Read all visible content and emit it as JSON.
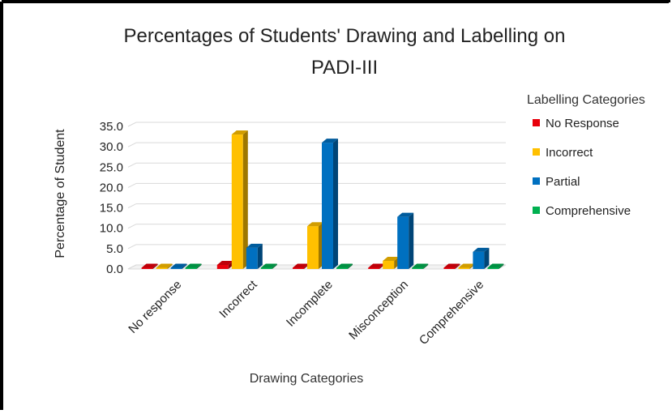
{
  "chart_data": {
    "type": "bar",
    "title_line1": "Percentages of Students' Drawing and Labelling on",
    "title_line2": "PADI-III",
    "xlabel": "Drawing Categories",
    "ylabel": "Percentage of Student",
    "ylim": [
      0,
      35
    ],
    "yticks": [
      "0.0",
      "5.0",
      "10.0",
      "15.0",
      "20.0",
      "25.0",
      "30.0",
      "35.0"
    ],
    "grid": true,
    "legend_title": "Labelling Categories",
    "legend_position": "right",
    "categories": [
      "No response",
      "Incorrect",
      "Incomplete",
      "Misconception",
      "Comprehensive"
    ],
    "series": [
      {
        "name": "No Response",
        "color": "#e8000b",
        "values": [
          0.0,
          1.0,
          0.0,
          0.0,
          0.0
        ]
      },
      {
        "name": "Incorrect",
        "color": "#ffc000",
        "values": [
          0.0,
          33.0,
          10.5,
          2.0,
          0.0
        ]
      },
      {
        "name": "Partial",
        "color": "#0070c0",
        "values": [
          0.0,
          5.2,
          31.0,
          12.8,
          4.2
        ]
      },
      {
        "name": "Comprehensive",
        "color": "#00b050",
        "values": [
          0.0,
          0.0,
          0.0,
          0.0,
          0.0
        ]
      }
    ]
  }
}
